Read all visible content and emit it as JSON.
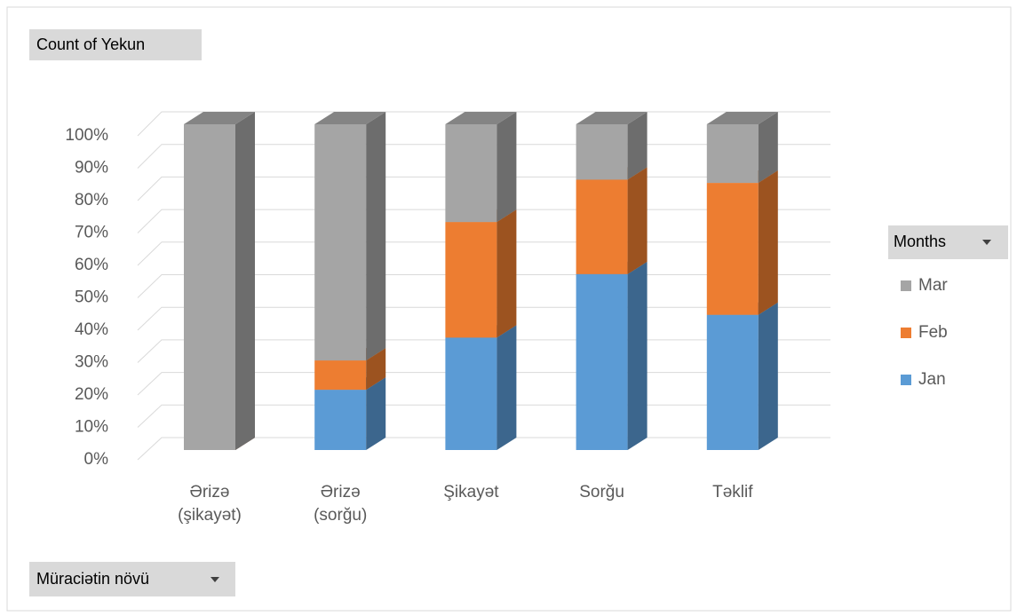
{
  "chart_data": {
    "type": "bar3d_stacked_percent",
    "title": "Count of Yekun",
    "legend_title": "Months",
    "x_axis_label": "Müraciətin növü",
    "categories": [
      "Ərizə (şikayət)",
      "Ərizə (sorğu)",
      "Şikayət",
      "Sorğu",
      "Təklif"
    ],
    "series": [
      {
        "name": "Jan",
        "color": "#5b9bd5",
        "values": [
          0,
          18.5,
          34.5,
          54,
          41.5
        ]
      },
      {
        "name": "Feb",
        "color": "#ed7d31",
        "values": [
          0,
          9,
          35.5,
          29,
          40.5
        ]
      },
      {
        "name": "Mar",
        "color": "#a5a5a5",
        "values": [
          100,
          72.5,
          30,
          17,
          18
        ]
      }
    ],
    "ylim": [
      0,
      100
    ],
    "yticks": [
      {
        "value": 0,
        "label": "0%"
      },
      {
        "value": 10,
        "label": "10%"
      },
      {
        "value": 20,
        "label": "20%"
      },
      {
        "value": 30,
        "label": "30%"
      },
      {
        "value": 40,
        "label": "40%"
      },
      {
        "value": 50,
        "label": "50%"
      },
      {
        "value": 60,
        "label": "60%"
      },
      {
        "value": 70,
        "label": "70%"
      },
      {
        "value": 80,
        "label": "80%"
      },
      {
        "value": 90,
        "label": "90%"
      },
      {
        "value": 100,
        "label": "100%"
      }
    ],
    "grid": true,
    "legend": "right"
  }
}
